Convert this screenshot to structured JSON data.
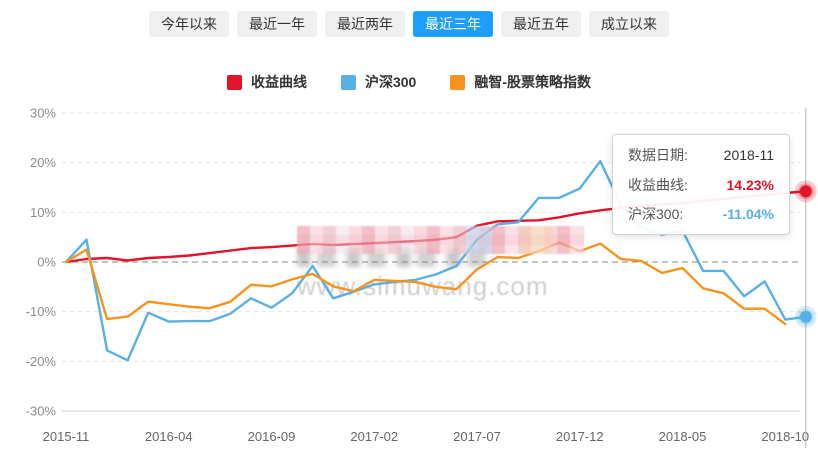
{
  "tabs": {
    "items": [
      {
        "label": "今年以来",
        "active": false
      },
      {
        "label": "最近一年",
        "active": false
      },
      {
        "label": "最近两年",
        "active": false
      },
      {
        "label": "最近三年",
        "active": true
      },
      {
        "label": "最近五年",
        "active": false
      },
      {
        "label": "成立以来",
        "active": false
      }
    ]
  },
  "legend": {
    "items": [
      {
        "label": "收益曲线",
        "color": "#e3132b"
      },
      {
        "label": "沪深300",
        "color": "#58b0e3"
      },
      {
        "label": "融智-股票策略指数",
        "color": "#f7941e"
      }
    ]
  },
  "tooltip": {
    "date_label": "数据日期:",
    "date_value": "2018-11",
    "rows": [
      {
        "label": "收益曲线:",
        "value": "14.23%",
        "color": "#e3132b"
      },
      {
        "label": "沪深300:",
        "value": "-11.04%",
        "color": "#58b0e3"
      }
    ]
  },
  "watermark": {
    "text": "www.simuwang.com"
  },
  "colors": {
    "active_tab": "#1e9fff",
    "grid_line": "#e2e2e2",
    "zero_line": "#8a8a8a",
    "crosshair": "#b5b5b5"
  },
  "chart_data": {
    "type": "line",
    "x": [
      "2015-11",
      "2015-12",
      "2016-01",
      "2016-02",
      "2016-03",
      "2016-04",
      "2016-05",
      "2016-06",
      "2016-07",
      "2016-08",
      "2016-09",
      "2016-10",
      "2016-11",
      "2016-12",
      "2017-01",
      "2017-02",
      "2017-03",
      "2017-04",
      "2017-05",
      "2017-06",
      "2017-07",
      "2017-08",
      "2017-09",
      "2017-10",
      "2017-11",
      "2017-12",
      "2018-01",
      "2018-02",
      "2018-03",
      "2018-04",
      "2018-05",
      "2018-06",
      "2018-07",
      "2018-08",
      "2018-09",
      "2018-10",
      "2018-11"
    ],
    "series": [
      {
        "name": "收益曲线",
        "color": "#e3132b",
        "values": [
          0,
          0.6,
          0.8,
          0.3,
          0.8,
          1.0,
          1.3,
          1.8,
          2.3,
          2.8,
          3.0,
          3.3,
          3.6,
          3.4,
          3.6,
          3.8,
          4.0,
          4.2,
          4.5,
          5.0,
          7.3,
          8.2,
          8.3,
          8.4,
          9.0,
          9.8,
          10.4,
          10.9,
          11.3,
          11.6,
          11.9,
          12.3,
          12.7,
          13.1,
          13.5,
          13.9,
          14.23
        ]
      },
      {
        "name": "沪深300",
        "color": "#58b0e3",
        "values": [
          0,
          4.5,
          -17.8,
          -19.8,
          -10.2,
          -12.0,
          -11.9,
          -11.9,
          -10.4,
          -7.3,
          -9.2,
          -6.3,
          -0.8,
          -7.3,
          -6.0,
          -4.5,
          -4.0,
          -3.6,
          -2.5,
          -0.8,
          4.5,
          7.6,
          8.0,
          12.9,
          12.9,
          14.8,
          20.3,
          11.5,
          7.0,
          5.5,
          6.3,
          -1.8,
          -1.8,
          -6.9,
          -3.9,
          -11.6,
          -11.04
        ]
      },
      {
        "name": "融智-股票策略指数",
        "color": "#f7941e",
        "values": [
          0,
          2.5,
          -11.5,
          -11.0,
          -8.0,
          -8.5,
          -9.0,
          -9.3,
          -8.0,
          -4.6,
          -4.9,
          -3.5,
          -2.4,
          -4.9,
          -5.9,
          -3.6,
          -3.8,
          -4.0,
          -5.0,
          -5.5,
          -1.5,
          1.0,
          0.8,
          2.2,
          3.9,
          2.2,
          3.7,
          0.6,
          0.2,
          -2.2,
          -1.2,
          -5.3,
          -6.3,
          -9.4,
          -9.4,
          -12.5,
          null
        ]
      }
    ],
    "title": "",
    "xlabel": "",
    "ylabel": "",
    "ylim": [
      -30,
      30
    ],
    "yticks": [
      30,
      20,
      10,
      0,
      -10,
      -20,
      -30
    ],
    "ytick_suffix": "%",
    "xtick_labels": [
      "2015-11",
      "2016-04",
      "2016-09",
      "2017-02",
      "2017-07",
      "2017-12",
      "2018-05",
      "2018-10"
    ],
    "xtick_indices": [
      0,
      5,
      10,
      15,
      20,
      25,
      30,
      35
    ],
    "grid": "horizontal-dashed",
    "legend_position": "top",
    "crosshair_index": 36,
    "end_markers": [
      {
        "series": "收益曲线",
        "value": 14.23
      },
      {
        "series": "沪深300",
        "value": -11.04
      }
    ]
  }
}
